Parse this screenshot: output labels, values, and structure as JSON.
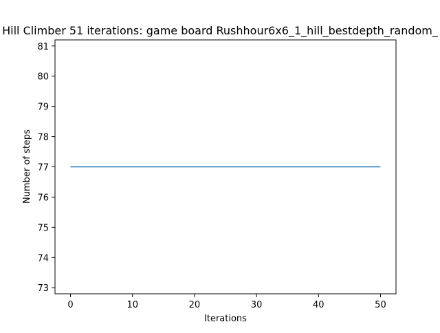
{
  "chart_data": {
    "type": "line",
    "title": "Hill Climber 51 iterations: game board Rushhour6x6_1_hill_bestdepth_random_",
    "xlabel": "Iterations",
    "ylabel": "Number of steps",
    "xlim": [
      -2.5,
      52.5
    ],
    "ylim": [
      72.8,
      81.2
    ],
    "xticks": [
      0,
      10,
      20,
      30,
      40,
      50
    ],
    "yticks": [
      73,
      74,
      75,
      76,
      77,
      78,
      79,
      80,
      81
    ],
    "grid": false,
    "legend": "none",
    "series": [
      {
        "color": "#1f77b4",
        "x": [
          0,
          50
        ],
        "y": [
          77,
          77
        ]
      }
    ]
  }
}
